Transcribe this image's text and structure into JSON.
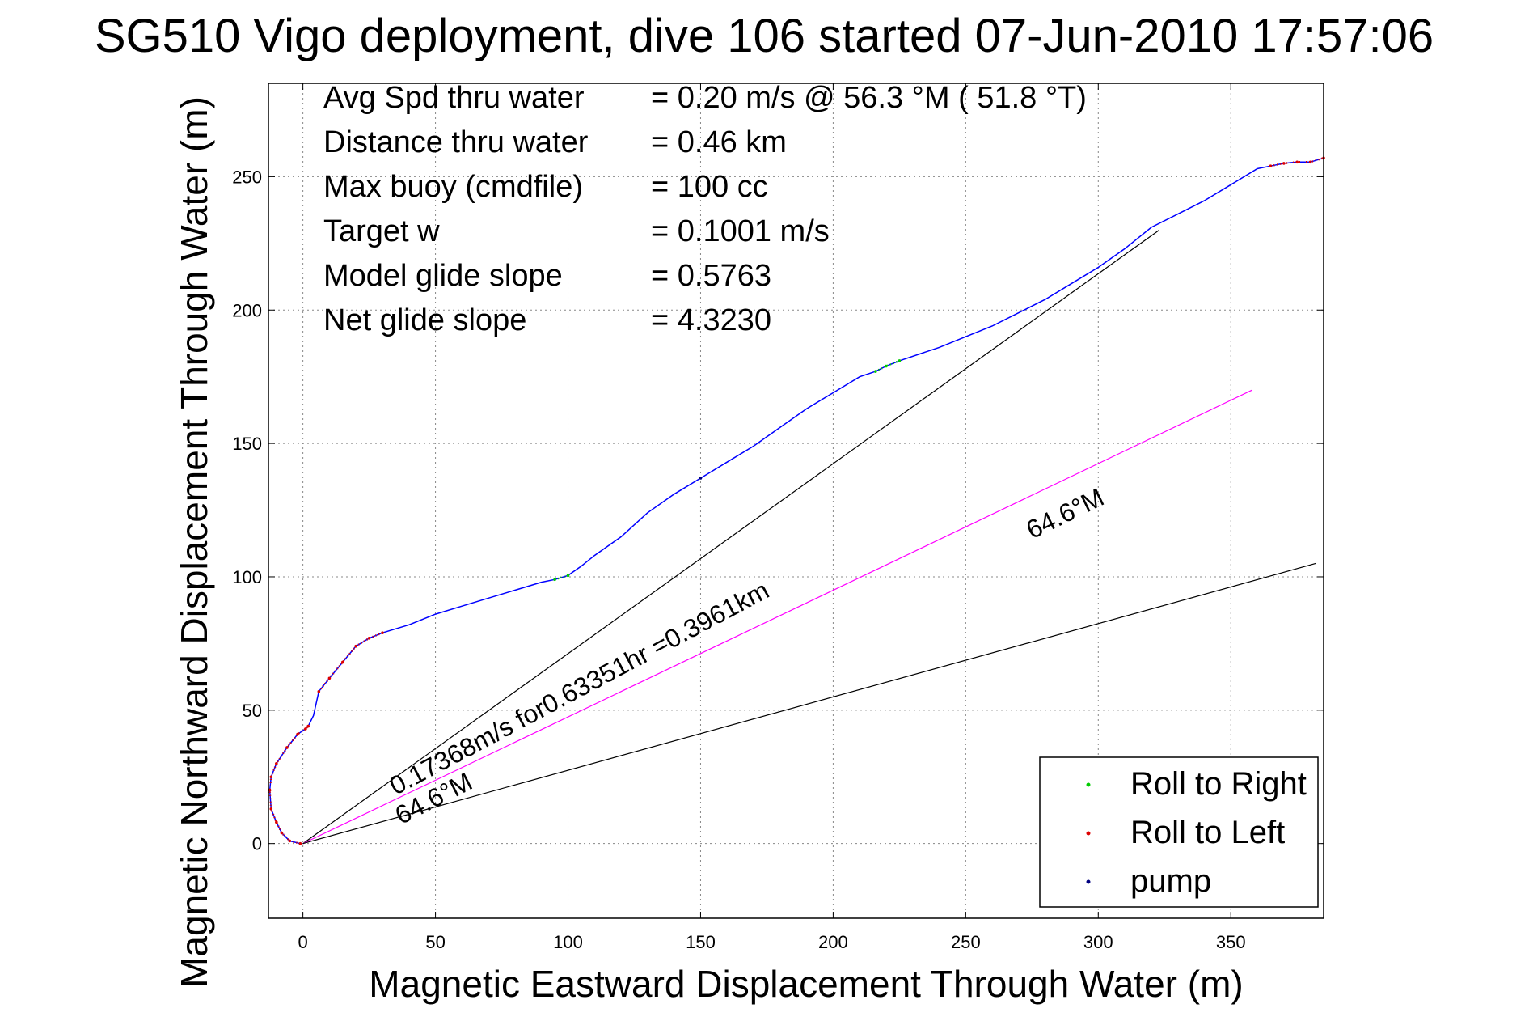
{
  "chart_data": {
    "type": "line",
    "title": "SG510 Vigo deployment, dive 106 started 07-Jun-2010 17:57:06",
    "xlabel": "Magnetic Eastward Displacement Through Water (m)",
    "ylabel": "Magnetic Northward Displacement Through Water (m)",
    "xlim": [
      -13,
      385
    ],
    "ylim": [
      -28,
      285
    ],
    "xticks": [
      0,
      50,
      100,
      150,
      200,
      250,
      300,
      350
    ],
    "yticks": [
      0,
      50,
      100,
      150,
      200,
      250
    ],
    "grid": true,
    "legend_position": "bottom-right",
    "stats": [
      {
        "label": "Avg Spd thru water",
        "value": "=  0.20 m/s @  56.3 °M ( 51.8 °T)"
      },
      {
        "label": "Distance thru water",
        "value": "=  0.46 km"
      },
      {
        "label": "Max buoy (cmdfile)",
        "value": "= 100 cc"
      },
      {
        "label": "Target w",
        "value": "= 0.1001 m/s"
      },
      {
        "label": "Model glide slope",
        "value": "= 0.5763"
      },
      {
        "label": "Net glide slope",
        "value": "= 4.3230"
      }
    ],
    "track": {
      "color": "#0000ff",
      "x": [
        -1,
        -5,
        -8,
        -10,
        -12,
        -12.5,
        -12,
        -10,
        -6,
        -2,
        1,
        2,
        4,
        6,
        10,
        15,
        20,
        25,
        30,
        40,
        50,
        60,
        70,
        80,
        90,
        95,
        100,
        105,
        110,
        120,
        130,
        140,
        150,
        160,
        170,
        180,
        190,
        200,
        210,
        216,
        220,
        225,
        240,
        250,
        260,
        270,
        280,
        290,
        300,
        310,
        320,
        330,
        340,
        350,
        360,
        365,
        370,
        375,
        380,
        385
      ],
      "y": [
        0,
        1,
        4,
        8,
        13,
        20,
        25,
        30,
        36,
        41,
        43,
        44,
        48,
        57,
        62,
        68,
        74,
        77,
        79,
        82,
        86,
        89,
        92,
        95,
        98,
        99,
        100.5,
        104,
        108,
        115,
        124,
        131,
        137,
        143,
        149,
        156,
        163,
        169,
        175,
        177,
        179,
        181,
        186,
        190,
        194,
        199,
        204,
        210,
        216,
        223,
        231,
        236,
        241,
        247,
        253,
        254,
        255,
        255.5,
        255.5,
        257
      ]
    },
    "markers": [
      {
        "name": "Roll to Right",
        "color": "#00cc00",
        "segments": [
          [
            95,
            101.5
          ],
          [
            216,
            225
          ]
        ]
      },
      {
        "name": "Roll to Left",
        "color": "#dd0000",
        "segments": [
          [
            -13,
            2
          ],
          [
            6,
            30
          ],
          [
            363,
            385
          ]
        ]
      },
      {
        "name": "pump",
        "color": "#000080",
        "segments": [
          [
            143,
            158
          ]
        ]
      }
    ],
    "reference_lines": [
      {
        "color": "#000000",
        "from": [
          0,
          0
        ],
        "to": [
          323,
          230
        ]
      },
      {
        "color": "#ff00ff",
        "from": [
          0,
          0
        ],
        "to": [
          358,
          170
        ]
      },
      {
        "color": "#000000",
        "from": [
          0,
          0
        ],
        "to": [
          382,
          105
        ]
      }
    ],
    "annotations": [
      {
        "text": "64.6°M",
        "x": 37,
        "y": 7
      },
      {
        "text": "0.17368m/s for0.63351hr =0.3961km",
        "x": 35,
        "y": 18
      },
      {
        "text": "64.6°M",
        "x": 275,
        "y": 114
      }
    ],
    "legend": [
      "Roll to Right",
      "Roll to Left",
      "pump"
    ]
  }
}
